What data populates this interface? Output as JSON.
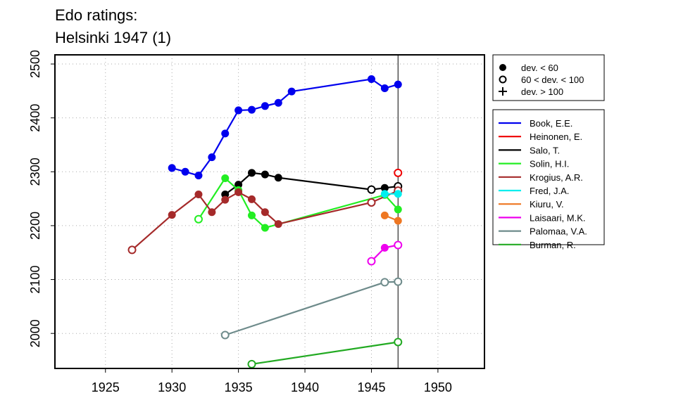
{
  "title": {
    "line1": "Edo ratings:",
    "line2": "Helsinki 1947 (1)"
  },
  "chart_data": {
    "type": "line",
    "title": "Edo ratings: Helsinki 1947 (1)",
    "xlabel": "",
    "ylabel": "",
    "xlim": [
      1921.2,
      1953.5
    ],
    "ylim": [
      1935,
      2517
    ],
    "x_ticks": [
      1925,
      1930,
      1935,
      1940,
      1945,
      1950
    ],
    "y_ticks": [
      2000,
      2100,
      2200,
      2300,
      2400,
      2500
    ],
    "grid": true,
    "reference_line_x": 1947,
    "legend_markers": {
      "placement": "top-right, outside plot",
      "entries": [
        {
          "label": "dev. < 60",
          "symbol": "filled-circle"
        },
        {
          "label": "60 < dev. < 100",
          "symbol": "open-circle"
        },
        {
          "label": "dev. > 100",
          "symbol": "plus"
        }
      ]
    },
    "series": [
      {
        "name": "Book, E.E.",
        "color": "#0000EE",
        "points": [
          [
            1930,
            2307,
            "filled"
          ],
          [
            1931,
            2300,
            "filled"
          ],
          [
            1932,
            2293,
            "filled"
          ],
          [
            1933,
            2327,
            "filled"
          ],
          [
            1934,
            2371,
            "filled"
          ],
          [
            1935,
            2414,
            "filled"
          ],
          [
            1936,
            2415,
            "filled"
          ],
          [
            1937,
            2422,
            "filled"
          ],
          [
            1938,
            2428,
            "filled"
          ],
          [
            1939,
            2449,
            "filled"
          ],
          [
            1945,
            2472,
            "filled"
          ],
          [
            1946,
            2455,
            "filled"
          ],
          [
            1947,
            2462,
            "filled"
          ]
        ]
      },
      {
        "name": "Heinonen, E.",
        "color": "#EE0000",
        "points": [
          [
            1947,
            2298,
            "open"
          ]
        ]
      },
      {
        "name": "Salo, T.",
        "color": "#000000",
        "points": [
          [
            1934,
            2258,
            "filled"
          ],
          [
            1935,
            2276,
            "filled"
          ],
          [
            1936,
            2298,
            "filled"
          ],
          [
            1937,
            2295,
            "filled"
          ],
          [
            1938,
            2289,
            "filled"
          ],
          [
            1945,
            2267,
            "open"
          ],
          [
            1946,
            2270,
            "filled"
          ],
          [
            1947,
            2273,
            "open"
          ]
        ]
      },
      {
        "name": "Solin, H.I.",
        "color": "#22EE22",
        "points": [
          [
            1932,
            2212,
            "open"
          ],
          [
            1934,
            2288,
            "filled"
          ],
          [
            1935,
            2266,
            "filled"
          ],
          [
            1936,
            2219,
            "filled"
          ],
          [
            1937,
            2196,
            "filled"
          ],
          [
            1946,
            2257,
            "filled"
          ],
          [
            1947,
            2230,
            "filled"
          ]
        ]
      },
      {
        "name": "Krogius, A.R.",
        "color": "#A52A2A",
        "points": [
          [
            1927,
            2155,
            "open"
          ],
          [
            1930,
            2220,
            "filled"
          ],
          [
            1932,
            2258,
            "filled"
          ],
          [
            1933,
            2225,
            "filled"
          ],
          [
            1934,
            2248,
            "filled"
          ],
          [
            1935,
            2262,
            "filled"
          ],
          [
            1936,
            2249,
            "filled"
          ],
          [
            1937,
            2225,
            "filled"
          ],
          [
            1938,
            2203,
            "filled"
          ],
          [
            1945,
            2243,
            "open"
          ],
          [
            1947,
            2265,
            "open"
          ]
        ]
      },
      {
        "name": "Fred, J.A.",
        "color": "#00EEEE",
        "points": [
          [
            1946,
            2259,
            "filled"
          ],
          [
            1947,
            2259,
            "filled"
          ]
        ]
      },
      {
        "name": "Kiuru, V.",
        "color": "#EE7722",
        "points": [
          [
            1946,
            2219,
            "filled"
          ],
          [
            1947,
            2209,
            "filled"
          ]
        ]
      },
      {
        "name": "Laisaari, M.K.",
        "color": "#EE00EE",
        "points": [
          [
            1945,
            2134,
            "open"
          ],
          [
            1946,
            2159,
            "filled"
          ],
          [
            1947,
            2164,
            "open"
          ]
        ]
      },
      {
        "name": "Palomaa, V.A.",
        "color": "#6E8B8B",
        "points": [
          [
            1934,
            1997,
            "open"
          ],
          [
            1946,
            2095,
            "open"
          ],
          [
            1947,
            2096,
            "open"
          ]
        ]
      },
      {
        "name": "Burman, R.",
        "color": "#22AA22",
        "points": [
          [
            1936,
            1943,
            "open"
          ],
          [
            1947,
            1984,
            "open"
          ]
        ]
      }
    ]
  }
}
